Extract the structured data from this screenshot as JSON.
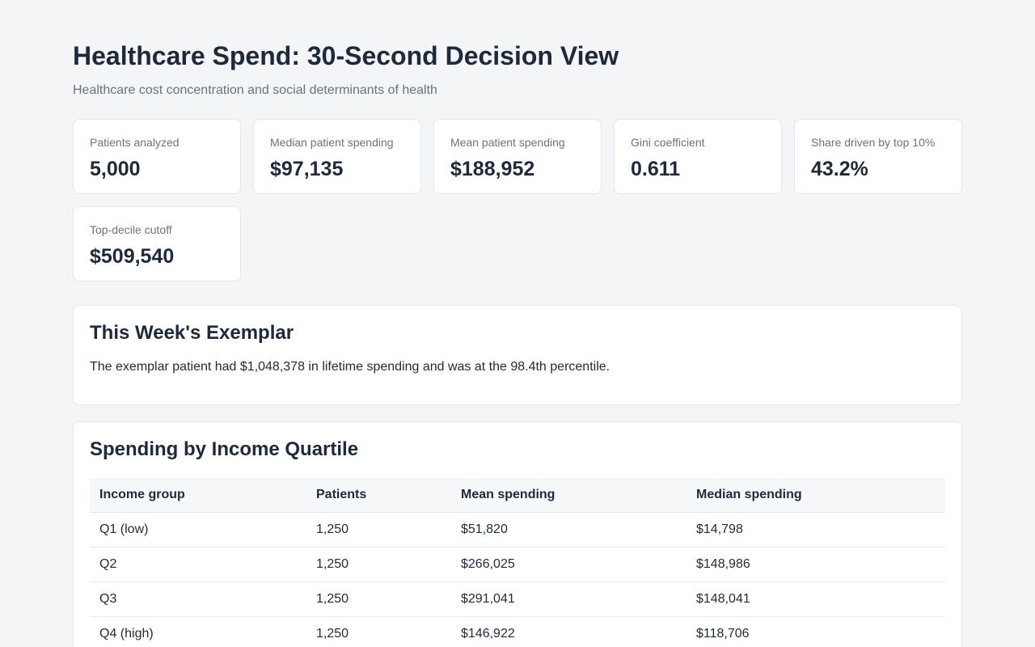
{
  "header": {
    "title": "Healthcare Spend: 30-Second Decision View",
    "subtitle": "Healthcare cost concentration and social determinants of health"
  },
  "kpis": [
    {
      "label": "Patients analyzed",
      "value": "5,000"
    },
    {
      "label": "Median patient spending",
      "value": "$97,135"
    },
    {
      "label": "Mean patient spending",
      "value": "$188,952"
    },
    {
      "label": "Gini coefficient",
      "value": "0.611"
    },
    {
      "label": "Share driven by top 10%",
      "value": "43.2%"
    },
    {
      "label": "Top-decile cutoff",
      "value": "$509,540"
    }
  ],
  "exemplar": {
    "title": "This Week's Exemplar",
    "text": "The exemplar patient had $1,048,378 in lifetime spending and was at the 98.4th percentile."
  },
  "quartile": {
    "title": "Spending by Income Quartile",
    "columns": [
      "Income group",
      "Patients",
      "Mean spending",
      "Median spending"
    ],
    "rows": [
      [
        "Q1 (low)",
        "1,250",
        "$51,820",
        "$14,798"
      ],
      [
        "Q2",
        "1,250",
        "$266,025",
        "$148,986"
      ],
      [
        "Q3",
        "1,250",
        "$291,041",
        "$148,041"
      ],
      [
        "Q4 (high)",
        "1,250",
        "$146,922",
        "$118,706"
      ]
    ]
  }
}
